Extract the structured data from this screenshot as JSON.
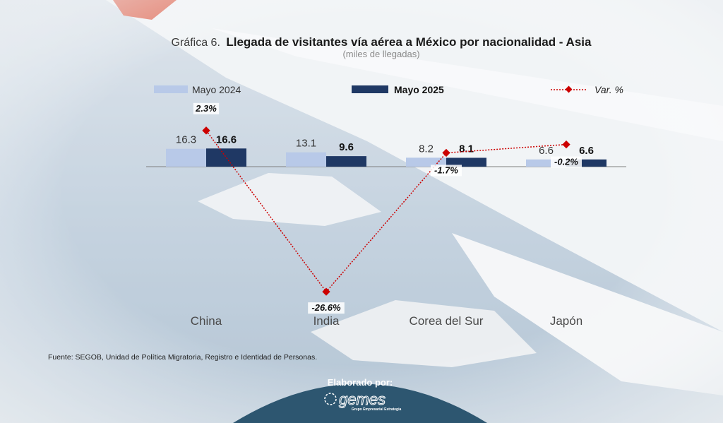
{
  "source_note": "Fuente: SEGOB, Unidad de Política Migratoria, Registro e Identidad de Personas.",
  "footer": {
    "label": "Elaborado por:",
    "logo_text": "gemes",
    "logo_subtitle": "Grupo Empresarial Estrategia"
  },
  "colors": {
    "series_2024": "#b8c9e8",
    "series_2025": "#1f3864",
    "var_line": "#cc0000",
    "footer_bg": "#2d5670"
  },
  "chart_data": {
    "type": "bar",
    "title_prefix": "Gráfica 6.",
    "title": "Llegada de visitantes vía aérea a México por nacionalidad - Asia",
    "subtitle": "(miles de llegadas)",
    "categories": [
      "China",
      "India",
      "Corea del Sur",
      "Japón"
    ],
    "series": [
      {
        "name": "Mayo 2024",
        "values": [
          16.3,
          13.1,
          8.2,
          6.6
        ],
        "labels": [
          "16.3",
          "13.1",
          "8.2",
          "6.6"
        ]
      },
      {
        "name": "Mayo 2025",
        "values": [
          16.6,
          9.6,
          8.1,
          6.6
        ],
        "labels": [
          "16.6",
          "9.6",
          "8.1",
          "6.6"
        ]
      }
    ],
    "line_series": {
      "name": "Var. %",
      "values": [
        2.3,
        -26.6,
        -1.7,
        -0.2
      ],
      "labels": [
        "2.3%",
        "-26.6%",
        "-1.7%",
        "-0.2%"
      ]
    },
    "legend_position": "top",
    "grid": false
  }
}
